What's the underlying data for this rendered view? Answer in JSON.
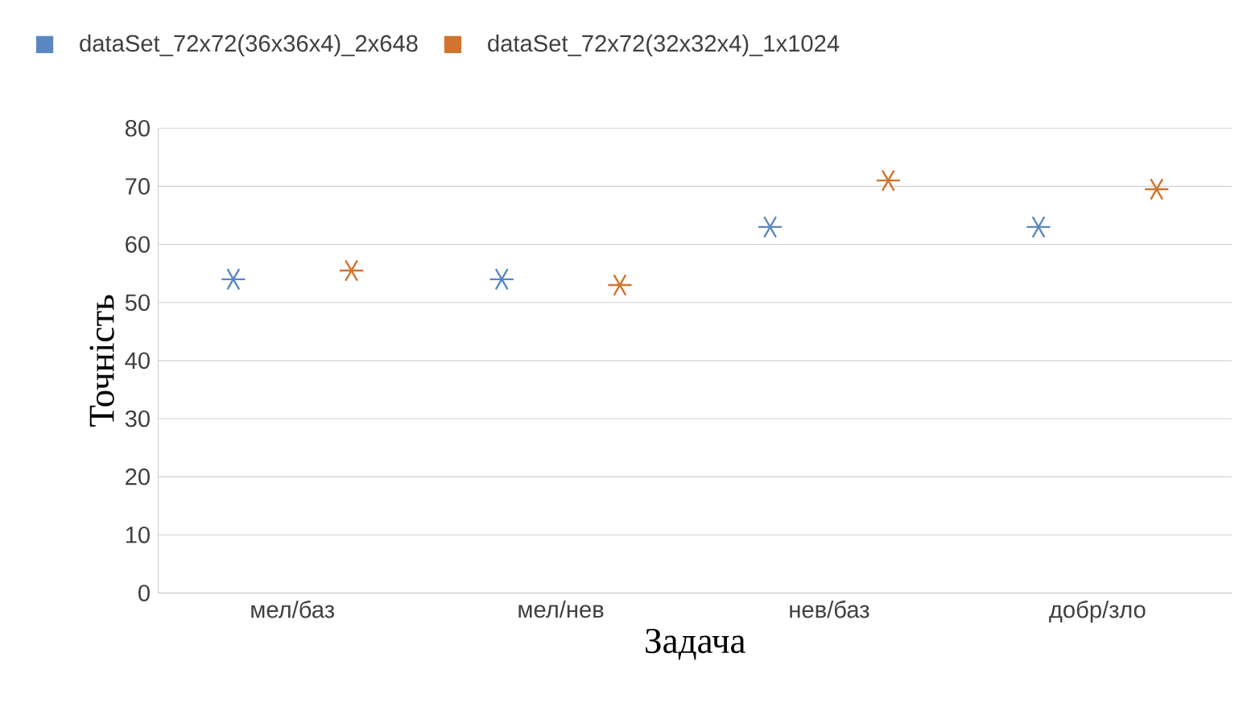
{
  "chart_data": {
    "type": "scatter",
    "xlabel": "Задача",
    "ylabel": "Точність",
    "categories": [
      "мел/баз",
      "мел/нев",
      "нев/баз",
      "добр/зло"
    ],
    "series": [
      {
        "name": "dataSet_72x72(36x36x4)_2x648",
        "color": "#5b87c0",
        "values": [
          54,
          54,
          63,
          63
        ]
      },
      {
        "name": "dataSet_72x72(32x32x4)_1x1024",
        "color": "#d0742f",
        "values": [
          55.5,
          53,
          71,
          69.5
        ]
      }
    ],
    "ylim": [
      0,
      80
    ],
    "yticks": [
      0,
      10,
      20,
      30,
      40,
      50,
      60,
      70,
      80
    ],
    "grid": "y",
    "legend": "top left",
    "marker": "cross"
  }
}
